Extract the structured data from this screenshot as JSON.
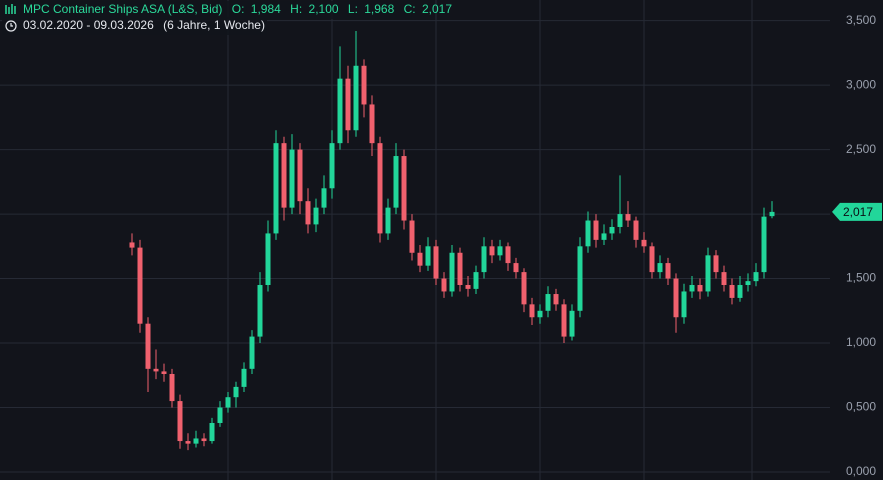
{
  "chart_data": {
    "type": "candlestick",
    "title": "MPC Container Ships ASA (L&S, Bid)",
    "header": {
      "open": {
        "name": "O:",
        "value": {
          "value": 1.984,
          "label": "1,984"
        }
      },
      "high": {
        "name": "H:",
        "value": {
          "value": 2.1,
          "label": "2,100"
        }
      },
      "low": {
        "name": "L:",
        "value": {
          "value": 1.968,
          "label": "1,968"
        }
      },
      "close": {
        "name": "C:",
        "value": {
          "value": 2.017,
          "label": "2,017"
        }
      }
    },
    "subtitle": "03.02.2020 - 09.03.2026",
    "period": "(6 Jahre, 1 Woche)",
    "last_price": {
      "value": 2.017,
      "label": "2,017"
    },
    "up_color": "#22d69a",
    "down_color": "#f0616e",
    "ylim": [
      0,
      3.66
    ],
    "yticks": [
      {
        "value": 0,
        "label": "0,000"
      },
      {
        "value": 0.5,
        "label": "0,500"
      },
      {
        "value": 1,
        "label": "1,000"
      },
      {
        "value": 1.5,
        "label": "1,500"
      },
      {
        "value": 2,
        "label": "2,000"
      },
      {
        "value": 2.5,
        "label": "2,500"
      },
      {
        "value": 3,
        "label": "3,000"
      },
      {
        "value": 3.5,
        "label": "3,500"
      }
    ],
    "grid": true,
    "ohlc": [
      [
        1.78,
        1.85,
        1.68,
        1.74
      ],
      [
        1.74,
        1.8,
        1.08,
        1.15
      ],
      [
        1.15,
        1.2,
        0.62,
        0.8
      ],
      [
        0.8,
        0.95,
        0.72,
        0.78
      ],
      [
        0.78,
        0.84,
        0.7,
        0.76
      ],
      [
        0.76,
        0.8,
        0.5,
        0.55
      ],
      [
        0.55,
        0.6,
        0.18,
        0.24
      ],
      [
        0.24,
        0.3,
        0.17,
        0.22
      ],
      [
        0.22,
        0.32,
        0.19,
        0.26
      ],
      [
        0.26,
        0.3,
        0.2,
        0.24
      ],
      [
        0.24,
        0.42,
        0.22,
        0.38
      ],
      [
        0.38,
        0.55,
        0.35,
        0.5
      ],
      [
        0.5,
        0.62,
        0.46,
        0.58
      ],
      [
        0.58,
        0.7,
        0.5,
        0.66
      ],
      [
        0.66,
        0.85,
        0.62,
        0.8
      ],
      [
        0.8,
        1.1,
        0.76,
        1.05
      ],
      [
        1.05,
        1.55,
        1.0,
        1.45
      ],
      [
        1.45,
        1.95,
        1.4,
        1.85
      ],
      [
        1.85,
        2.65,
        1.8,
        2.55
      ],
      [
        2.55,
        2.6,
        1.95,
        2.05
      ],
      [
        2.05,
        2.62,
        2.0,
        2.5
      ],
      [
        2.5,
        2.55,
        2.0,
        2.1
      ],
      [
        2.1,
        2.2,
        1.85,
        1.92
      ],
      [
        1.92,
        2.12,
        1.86,
        2.05
      ],
      [
        2.05,
        2.3,
        2.0,
        2.2
      ],
      [
        2.2,
        2.65,
        2.12,
        2.55
      ],
      [
        2.55,
        3.3,
        2.5,
        3.05
      ],
      [
        3.05,
        3.15,
        2.55,
        2.65
      ],
      [
        2.65,
        3.42,
        2.6,
        3.15
      ],
      [
        3.15,
        3.2,
        2.75,
        2.85
      ],
      [
        2.85,
        2.92,
        2.45,
        2.55
      ],
      [
        2.55,
        2.6,
        1.78,
        1.85
      ],
      [
        1.85,
        2.12,
        1.8,
        2.05
      ],
      [
        2.05,
        2.55,
        2.0,
        2.45
      ],
      [
        2.45,
        2.5,
        1.88,
        1.95
      ],
      [
        1.95,
        2.0,
        1.64,
        1.7
      ],
      [
        1.7,
        1.76,
        1.55,
        1.6
      ],
      [
        1.6,
        1.82,
        1.56,
        1.75
      ],
      [
        1.75,
        1.8,
        1.45,
        1.5
      ],
      [
        1.5,
        1.55,
        1.35,
        1.4
      ],
      [
        1.4,
        1.76,
        1.36,
        1.7
      ],
      [
        1.7,
        1.74,
        1.4,
        1.45
      ],
      [
        1.45,
        1.52,
        1.36,
        1.42
      ],
      [
        1.42,
        1.6,
        1.38,
        1.55
      ],
      [
        1.55,
        1.82,
        1.5,
        1.75
      ],
      [
        1.75,
        1.8,
        1.62,
        1.68
      ],
      [
        1.68,
        1.8,
        1.64,
        1.75
      ],
      [
        1.75,
        1.78,
        1.56,
        1.62
      ],
      [
        1.62,
        1.66,
        1.5,
        1.55
      ],
      [
        1.55,
        1.58,
        1.24,
        1.3
      ],
      [
        1.3,
        1.35,
        1.14,
        1.2
      ],
      [
        1.2,
        1.3,
        1.15,
        1.25
      ],
      [
        1.25,
        1.44,
        1.2,
        1.38
      ],
      [
        1.38,
        1.42,
        1.25,
        1.3
      ],
      [
        1.3,
        1.34,
        1.0,
        1.05
      ],
      [
        1.05,
        1.3,
        1.02,
        1.25
      ],
      [
        1.25,
        1.82,
        1.2,
        1.75
      ],
      [
        1.75,
        2.02,
        1.7,
        1.95
      ],
      [
        1.95,
        2.0,
        1.74,
        1.8
      ],
      [
        1.8,
        1.92,
        1.76,
        1.85
      ],
      [
        1.85,
        1.96,
        1.8,
        1.9
      ],
      [
        1.9,
        2.3,
        1.85,
        2.0
      ],
      [
        2.0,
        2.1,
        1.9,
        1.95
      ],
      [
        1.95,
        1.98,
        1.74,
        1.8
      ],
      [
        1.8,
        1.86,
        1.7,
        1.75
      ],
      [
        1.75,
        1.78,
        1.5,
        1.55
      ],
      [
        1.55,
        1.68,
        1.5,
        1.62
      ],
      [
        1.62,
        1.66,
        1.45,
        1.5
      ],
      [
        1.5,
        1.54,
        1.08,
        1.2
      ],
      [
        1.2,
        1.46,
        1.15,
        1.4
      ],
      [
        1.4,
        1.52,
        1.35,
        1.45
      ],
      [
        1.45,
        1.5,
        1.34,
        1.4
      ],
      [
        1.4,
        1.74,
        1.36,
        1.68
      ],
      [
        1.68,
        1.72,
        1.5,
        1.55
      ],
      [
        1.55,
        1.6,
        1.4,
        1.45
      ],
      [
        1.45,
        1.5,
        1.3,
        1.35
      ],
      [
        1.35,
        1.52,
        1.32,
        1.45
      ],
      [
        1.45,
        1.54,
        1.4,
        1.48
      ],
      [
        1.48,
        1.62,
        1.44,
        1.55
      ],
      [
        1.55,
        2.05,
        1.5,
        1.98
      ],
      [
        1.984,
        2.1,
        1.968,
        2.017
      ]
    ]
  }
}
